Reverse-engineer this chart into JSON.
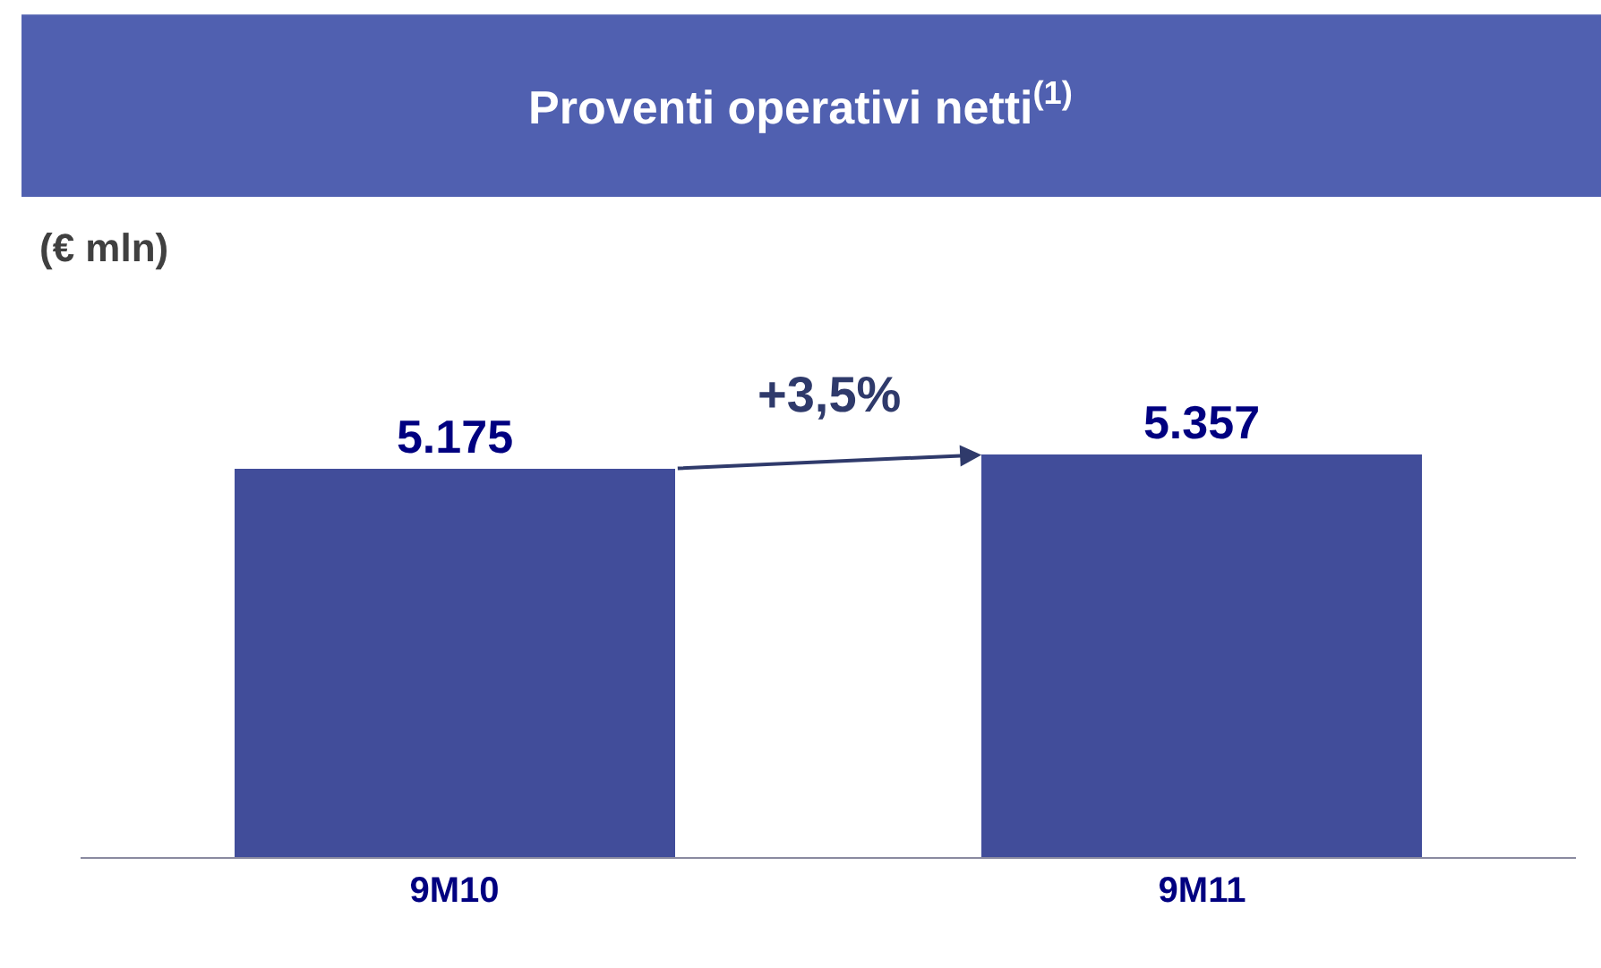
{
  "chart_data": {
    "type": "bar",
    "title": "Proventi operativi netti$^{(1)}$",
    "ylabel": "(€ mln)",
    "categories": [
      "9M10",
      "9M11"
    ],
    "values": [
      5175,
      5357
    ],
    "value_labels": [
      "5.175",
      "5.357"
    ],
    "color": "#414d9a",
    "annotations": [
      "+3,5%"
    ]
  }
}
